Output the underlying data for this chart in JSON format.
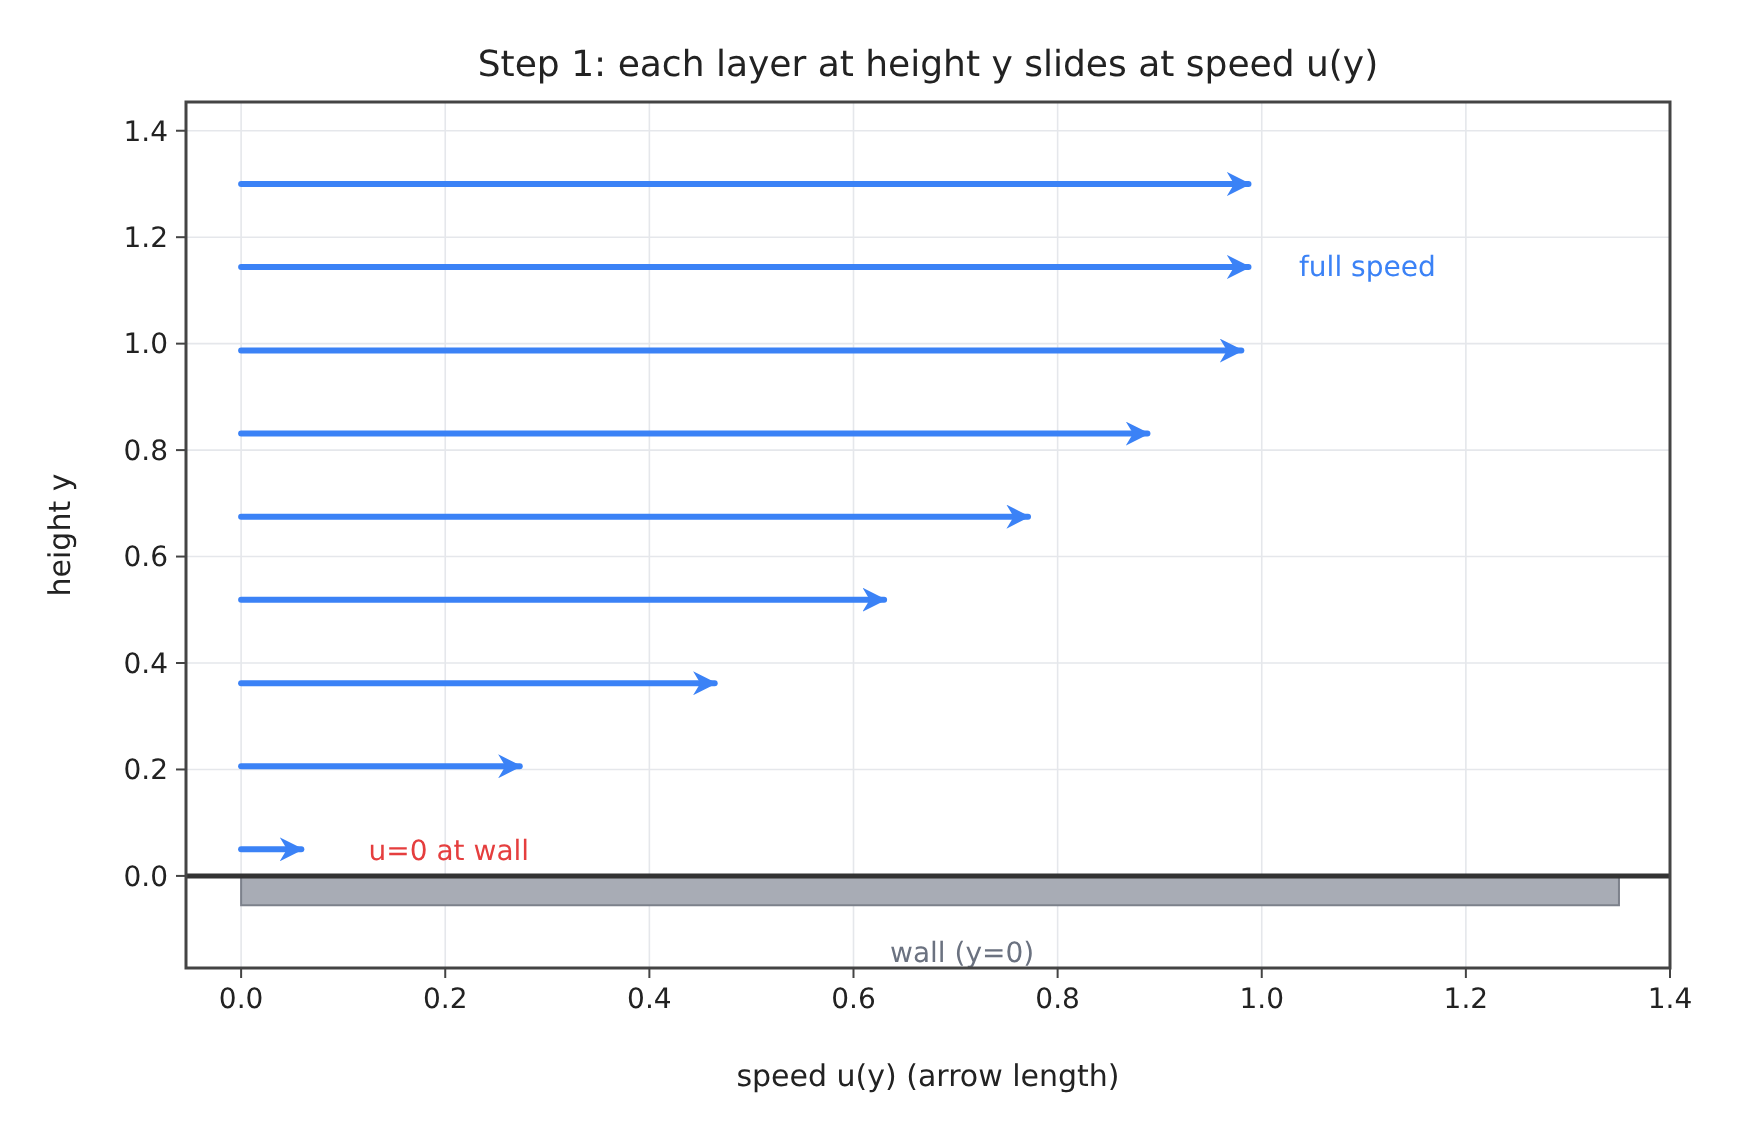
{
  "chart_data": {
    "type": "line",
    "title": "Step 1: each layer at height y slides at speed u(y)",
    "xlabel": "speed  u(y)  (arrow length)",
    "ylabel": "height  y",
    "xlim": [
      -0.054,
      1.4
    ],
    "ylim": [
      -0.173,
      1.454
    ],
    "xticks": [
      {
        "value": 0,
        "label": "0.0"
      },
      0.2,
      0.4,
      0.6,
      0.8,
      {
        "value": 1,
        "label": "1.0"
      },
      1.2,
      1.4
    ],
    "yticks": [
      {
        "value": 0,
        "label": "0.0"
      },
      0.2,
      0.4,
      0.6,
      0.8,
      {
        "value": 1,
        "label": "1.0"
      },
      1.2,
      1.4
    ],
    "grid": true,
    "series": [
      {
        "type": "area",
        "color": "#a8acb5",
        "x": [
          0,
          1.35
        ],
        "values": [
          -0.055,
          -0.055
        ]
      },
      {
        "color": "#3b82f6",
        "x": [
          0,
          0.059
        ],
        "values": [
          0.05,
          0.05
        ]
      },
      {
        "color": "#3b82f6",
        "x": [
          0,
          0.273
        ],
        "values": [
          0.206,
          0.206
        ]
      },
      {
        "color": "#3b82f6",
        "x": [
          0,
          0.464
        ],
        "values": [
          0.362,
          0.362
        ]
      },
      {
        "color": "#3b82f6",
        "x": [
          0,
          0.63
        ],
        "values": [
          0.519,
          0.519
        ]
      },
      {
        "color": "#3b82f6",
        "x": [
          0,
          0.771
        ],
        "values": [
          0.675,
          0.675
        ]
      },
      {
        "color": "#3b82f6",
        "x": [
          0,
          0.888
        ],
        "values": [
          0.831,
          0.831
        ]
      },
      {
        "color": "#3b82f6",
        "x": [
          0,
          0.98
        ],
        "values": [
          0.987,
          0.987
        ]
      },
      {
        "color": "#3b82f6",
        "x": [
          0,
          0.987
        ],
        "values": [
          1.144,
          1.144
        ]
      },
      {
        "color": "#3b82f6",
        "x": [
          0,
          0.987
        ],
        "values": [
          1.3,
          1.3
        ]
      }
    ],
    "ref_lines": [
      {
        "axis": "y",
        "value": 0,
        "color": "#333333"
      }
    ],
    "annotations": [
      "u=0 at wall",
      "full speed",
      "wall (y=0)"
    ]
  }
}
